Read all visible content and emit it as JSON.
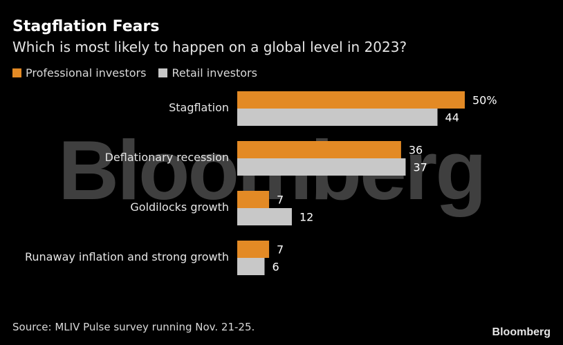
{
  "header": {
    "title": "Stagflation Fears",
    "subtitle": "Which is most likely to happen on a global level in 2023?"
  },
  "watermark": "Bloomberg",
  "chart_data": {
    "type": "bar",
    "orientation": "horizontal",
    "title": "Stagflation Fears",
    "subtitle": "Which is most likely to happen on a global level in 2023?",
    "categories": [
      "Stagflation",
      "Deflationary recession",
      "Goldilocks growth",
      "Runaway inflation and strong growth"
    ],
    "series": [
      {
        "name": "Professional investors",
        "color": "#e38a25",
        "values": [
          50,
          36,
          7,
          7
        ],
        "labels": [
          "50%",
          "36",
          "7",
          "7"
        ]
      },
      {
        "name": "Retail investors",
        "color": "#c8c8c8",
        "values": [
          44,
          37,
          12,
          6
        ],
        "labels": [
          "44",
          "37",
          "12",
          "6"
        ]
      }
    ],
    "xlim": [
      0,
      50
    ],
    "legend_position": "top-left",
    "grid": false
  },
  "footer": {
    "source": "Source: MLIV Pulse survey running Nov. 21-25.",
    "brand": "Bloomberg"
  }
}
